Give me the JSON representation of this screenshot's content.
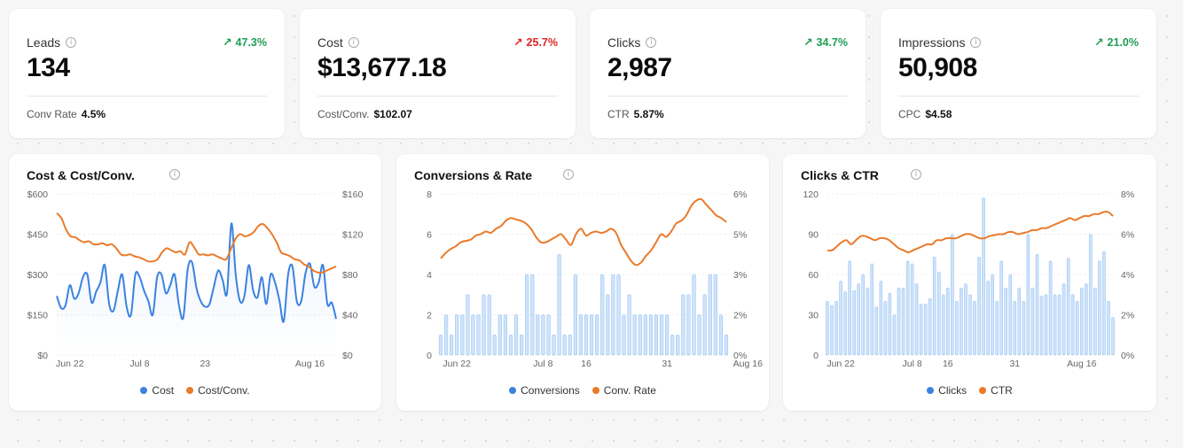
{
  "colors": {
    "blue": "#3b82e0",
    "orange": "#ea7a2a",
    "up": "#1f9d55",
    "down": "#dc2626",
    "bar_fill": "#cfe3fa",
    "bar_stroke": "#9cc6f2"
  },
  "kpis": [
    {
      "label": "Leads",
      "value": "134",
      "delta": "47.3%",
      "direction": "up",
      "sub_label": "Conv Rate",
      "sub_value": "4.5%"
    },
    {
      "label": "Cost",
      "value": "$13,677.18",
      "delta": "25.7%",
      "direction": "up-bad",
      "sub_label": "Cost/Conv.",
      "sub_value": "$102.07"
    },
    {
      "label": "Clicks",
      "value": "2,987",
      "delta": "34.7%",
      "direction": "up",
      "sub_label": "CTR",
      "sub_value": "5.87%"
    },
    {
      "label": "Impressions",
      "value": "50,908",
      "delta": "21.0%",
      "direction": "up",
      "sub_label": "CPC",
      "sub_value": "$4.58"
    }
  ],
  "charts": [
    {
      "title": "Cost & Cost/Conv.",
      "legend": [
        "Cost",
        "Cost/Conv."
      ]
    },
    {
      "title": "Conversions & Rate",
      "legend": [
        "Conversions",
        "Conv. Rate"
      ]
    },
    {
      "title": "Clicks & CTR",
      "legend": [
        "Clicks",
        "CTR"
      ]
    }
  ],
  "chart_data": [
    {
      "type": "line",
      "title": "Cost & Cost/Conv.",
      "left_ticks": [
        "$0",
        "$150",
        "$300",
        "$450",
        "$600"
      ],
      "right_ticks": [
        "$0",
        "$40",
        "$80",
        "$120",
        "$160"
      ],
      "x_ticks": [
        {
          "label": "Jun 22",
          "i": 3
        },
        {
          "label": "Jul 8",
          "i": 19
        },
        {
          "label": "23",
          "i": 34
        },
        {
          "label": "Aug 16",
          "i": 58
        }
      ],
      "ylim_left": [
        0,
        600
      ],
      "ylim_right": [
        0,
        160
      ],
      "series": [
        {
          "name": "Cost",
          "axis": "left",
          "type": "area-line",
          "values": [
            220,
            175,
            185,
            260,
            210,
            230,
            290,
            300,
            195,
            235,
            270,
            335,
            190,
            165,
            240,
            300,
            180,
            150,
            300,
            290,
            240,
            200,
            150,
            290,
            300,
            230,
            260,
            300,
            185,
            140,
            320,
            345,
            250,
            200,
            180,
            190,
            255,
            315,
            280,
            230,
            490,
            300,
            200,
            220,
            335,
            240,
            215,
            290,
            190,
            300,
            270,
            205,
            125,
            300,
            330,
            200,
            200,
            305,
            340,
            255,
            270,
            335,
            190,
            195,
            135
          ]
        },
        {
          "name": "Cost/Conv.",
          "axis": "right",
          "type": "line",
          "values": [
            141,
            136,
            125,
            118,
            117,
            114,
            112,
            113,
            110,
            110,
            111,
            109,
            110,
            106,
            100,
            99,
            100,
            98,
            97,
            95,
            93,
            93,
            95,
            102,
            106,
            104,
            102,
            103,
            100,
            112,
            107,
            100,
            100,
            99,
            100,
            98,
            96,
            95,
            105,
            115,
            120,
            118,
            119,
            122,
            128,
            130,
            126,
            120,
            112,
            102,
            100,
            98,
            95,
            94,
            90,
            88,
            84,
            82,
            82,
            84,
            86,
            88
          ]
        }
      ]
    },
    {
      "type": "bar+line",
      "title": "Conversions & Rate",
      "left_ticks": [
        "0",
        "2",
        "4",
        "6",
        "8"
      ],
      "right_ticks": [
        "0%",
        "2%",
        "3%",
        "5%",
        "6%"
      ],
      "x_ticks": [
        {
          "label": "Jun 22",
          "i": 3
        },
        {
          "label": "Jul 8",
          "i": 19
        },
        {
          "label": "16",
          "i": 27
        },
        {
          "label": "31",
          "i": 42
        },
        {
          "label": "Aug 16",
          "i": 57
        }
      ],
      "ylim_left": [
        0,
        8
      ],
      "ylim_right": [
        0,
        6
      ],
      "series": [
        {
          "name": "Conversions",
          "axis": "left",
          "type": "bar",
          "values": [
            1,
            2,
            1,
            2,
            2,
            3,
            2,
            2,
            3,
            3,
            1,
            2,
            2,
            1,
            2,
            1,
            4,
            4,
            2,
            2,
            2,
            1,
            5,
            1,
            1,
            4,
            2,
            2,
            2,
            2,
            4,
            3,
            4,
            4,
            2,
            3,
            2,
            2,
            2,
            2,
            2,
            2,
            2,
            1,
            1,
            3,
            3,
            4,
            2,
            3,
            4,
            4,
            2,
            1
          ]
        },
        {
          "name": "Conv. Rate",
          "axis": "right",
          "type": "line",
          "values": [
            3.6,
            3.8,
            3.95,
            4.05,
            4.2,
            4.25,
            4.3,
            4.45,
            4.5,
            4.6,
            4.55,
            4.7,
            4.8,
            5.0,
            5.1,
            5.05,
            5.0,
            4.9,
            4.7,
            4.4,
            4.2,
            4.2,
            4.3,
            4.4,
            4.5,
            4.3,
            4.1,
            4.5,
            4.7,
            4.45,
            4.55,
            4.6,
            4.55,
            4.6,
            4.7,
            4.55,
            4.1,
            3.8,
            3.5,
            3.35,
            3.45,
            3.7,
            3.9,
            4.2,
            4.5,
            4.4,
            4.6,
            4.9,
            5.0,
            5.2,
            5.55,
            5.75,
            5.8,
            5.6,
            5.4,
            5.2,
            5.1,
            4.95
          ]
        }
      ]
    },
    {
      "type": "bar+line",
      "title": "Clicks & CTR",
      "left_ticks": [
        "0",
        "30",
        "60",
        "90",
        "120"
      ],
      "right_ticks": [
        "0%",
        "2%",
        "4%",
        "6%",
        "8%"
      ],
      "x_ticks": [
        {
          "label": "Jun 22",
          "i": 3
        },
        {
          "label": "Jul 8",
          "i": 19
        },
        {
          "label": "16",
          "i": 27
        },
        {
          "label": "31",
          "i": 42
        },
        {
          "label": "Aug 16",
          "i": 57
        }
      ],
      "ylim_left": [
        0,
        120
      ],
      "ylim_right": [
        0,
        8
      ],
      "series": [
        {
          "name": "Clicks",
          "axis": "left",
          "type": "bar",
          "values": [
            40,
            37,
            40,
            55,
            47,
            70,
            48,
            53,
            60,
            50,
            68,
            36,
            55,
            40,
            46,
            30,
            50,
            50,
            70,
            68,
            53,
            38,
            38,
            42,
            73,
            62,
            45,
            50,
            90,
            40,
            50,
            53,
            45,
            40,
            73,
            117,
            55,
            60,
            40,
            70,
            50,
            60,
            40,
            50,
            40,
            90,
            50,
            75,
            44,
            45,
            70,
            45,
            45,
            53,
            72,
            45,
            40,
            50,
            53,
            90,
            50,
            70,
            77,
            40,
            28
          ]
        },
        {
          "name": "CTR",
          "axis": "right",
          "type": "line",
          "values": [
            5.2,
            5.2,
            5.4,
            5.6,
            5.7,
            5.5,
            5.7,
            5.9,
            5.9,
            5.8,
            5.7,
            5.8,
            5.8,
            5.7,
            5.5,
            5.3,
            5.2,
            5.1,
            5.2,
            5.3,
            5.4,
            5.5,
            5.5,
            5.7,
            5.7,
            5.8,
            5.8,
            5.8,
            5.9,
            6.0,
            6.0,
            5.9,
            5.8,
            5.8,
            5.9,
            5.95,
            6.0,
            6.0,
            6.1,
            6.1,
            6.0,
            6.05,
            6.1,
            6.2,
            6.2,
            6.3,
            6.3,
            6.4,
            6.5,
            6.6,
            6.7,
            6.8,
            6.7,
            6.8,
            6.9,
            6.9,
            7.0,
            7.0,
            7.1,
            7.1,
            6.9
          ]
        }
      ]
    }
  ]
}
